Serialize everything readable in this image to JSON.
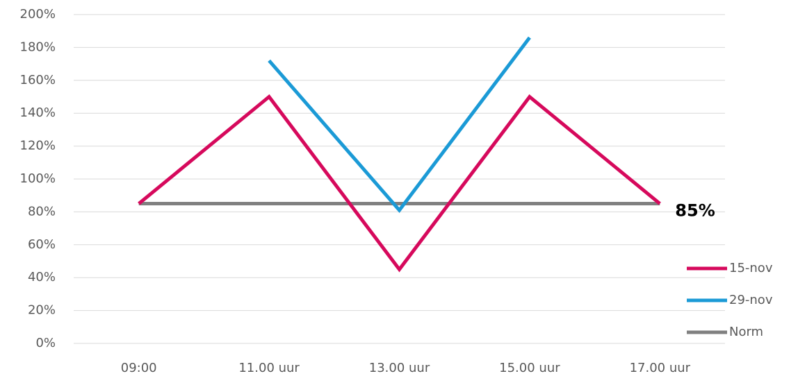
{
  "chart_data": {
    "type": "line",
    "categories": [
      "09:00",
      "11.00 uur",
      "13.00 uur",
      "15.00 uur",
      "17.00 uur"
    ],
    "series": [
      {
        "name": "15-nov",
        "color": "#d6095c",
        "values": [
          85,
          150,
          45,
          150,
          85
        ]
      },
      {
        "name": "29-nov",
        "color": "#1b9ad6",
        "values": [
          null,
          172,
          81,
          186,
          null
        ]
      },
      {
        "name": "Norm",
        "color": "#808080",
        "values": [
          85,
          85,
          85,
          85,
          85
        ],
        "value_labels": [
          null,
          null,
          null,
          null,
          "85%"
        ]
      }
    ],
    "ylim": [
      0,
      200
    ],
    "yticks": [
      {
        "value": 0,
        "label": "0%"
      },
      {
        "value": 20,
        "label": "20%"
      },
      {
        "value": 40,
        "label": "40%"
      },
      {
        "value": 60,
        "label": "60%"
      },
      {
        "value": 80,
        "label": "80%"
      },
      {
        "value": 100,
        "label": "100%"
      },
      {
        "value": 120,
        "label": "120%"
      },
      {
        "value": 140,
        "label": "140%"
      },
      {
        "value": 160,
        "label": "160%"
      },
      {
        "value": 180,
        "label": "180%"
      },
      {
        "value": 200,
        "label": "200%"
      }
    ],
    "grid": true,
    "legend": "right"
  }
}
